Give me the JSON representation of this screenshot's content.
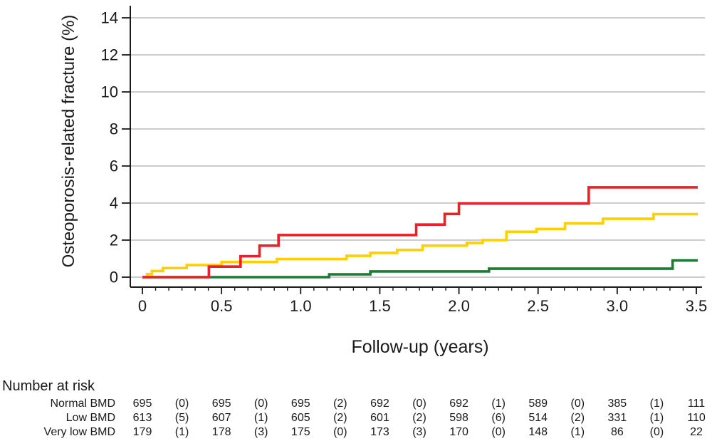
{
  "figure_background": "#ffffff",
  "text_color": "#1a1a1a",
  "chart_data": {
    "type": "line",
    "subtype": "step-cumulative-incidence",
    "title": "",
    "ylabel": "Osteoporosis-related fracture (%)",
    "xlabel": "Follow-up (years)",
    "xlim": [
      0,
      3.5
    ],
    "ylim": [
      0,
      14
    ],
    "y_ticks": [
      0,
      2,
      4,
      6,
      8,
      10,
      12,
      14
    ],
    "y_tick_labels": [
      "0",
      "2",
      "4",
      "6",
      "8",
      "10",
      "12",
      "14"
    ],
    "x_major_ticks": [
      0,
      0.5,
      1.0,
      1.5,
      2.0,
      2.5,
      3.0,
      3.5
    ],
    "x_tick_labels": [
      "0",
      "0.5",
      "1.0",
      "1.5",
      "2.0",
      "2.5",
      "3.0",
      "3.5"
    ],
    "x_minor_ticks_per_major": 6,
    "grid": "horizontal",
    "gridline_color": "#adadad",
    "axis_color": "#1a1a1a",
    "legend": "none",
    "series": [
      {
        "name": "Normal BMD",
        "color": "#1e7b34",
        "steps": [
          [
            0,
            0
          ],
          [
            1.18,
            0.15
          ],
          [
            1.44,
            0.31
          ],
          [
            2.19,
            0.46
          ],
          [
            3.35,
            0.9
          ],
          [
            3.5,
            0.9
          ]
        ]
      },
      {
        "name": "Low BMD",
        "color": "#ffcf00",
        "steps": [
          [
            0,
            0
          ],
          [
            0.03,
            0.16
          ],
          [
            0.06,
            0.33
          ],
          [
            0.13,
            0.49
          ],
          [
            0.28,
            0.65
          ],
          [
            0.5,
            0.82
          ],
          [
            0.85,
            0.98
          ],
          [
            1.29,
            1.15
          ],
          [
            1.44,
            1.31
          ],
          [
            1.61,
            1.47
          ],
          [
            1.77,
            1.7
          ],
          [
            2.05,
            1.85
          ],
          [
            2.15,
            2.0
          ],
          [
            2.3,
            2.45
          ],
          [
            2.49,
            2.6
          ],
          [
            2.67,
            2.9
          ],
          [
            2.91,
            3.15
          ],
          [
            3.23,
            3.4
          ],
          [
            3.5,
            3.4
          ]
        ]
      },
      {
        "name": "Very low BMD",
        "color": "#ec2028",
        "steps": [
          [
            0,
            0
          ],
          [
            0.42,
            0.57
          ],
          [
            0.62,
            1.13
          ],
          [
            0.74,
            1.7
          ],
          [
            0.86,
            2.27
          ],
          [
            1.73,
            2.84
          ],
          [
            1.91,
            3.41
          ],
          [
            2.0,
            3.98
          ],
          [
            2.82,
            4.85
          ],
          [
            3.5,
            4.85
          ]
        ]
      }
    ]
  },
  "risk_table": {
    "title": "Number at risk",
    "rows": [
      {
        "label": "Normal BMD",
        "values": [
          "695",
          "(0)",
          "695",
          "(0)",
          "695",
          "(2)",
          "692",
          "(0)",
          "692",
          "(1)",
          "589",
          "(0)",
          "385",
          "(1)",
          "111"
        ]
      },
      {
        "label": "Low BMD",
        "values": [
          "613",
          "(5)",
          "607",
          "(1)",
          "605",
          "(2)",
          "601",
          "(2)",
          "598",
          "(6)",
          "514",
          "(2)",
          "331",
          "(1)",
          "110"
        ]
      },
      {
        "label": "Very low BMD",
        "values": [
          "179",
          "(1)",
          "178",
          "(3)",
          "175",
          "(0)",
          "173",
          "(3)",
          "170",
          "(0)",
          "148",
          "(1)",
          "86",
          "(0)",
          "22"
        ]
      }
    ]
  }
}
